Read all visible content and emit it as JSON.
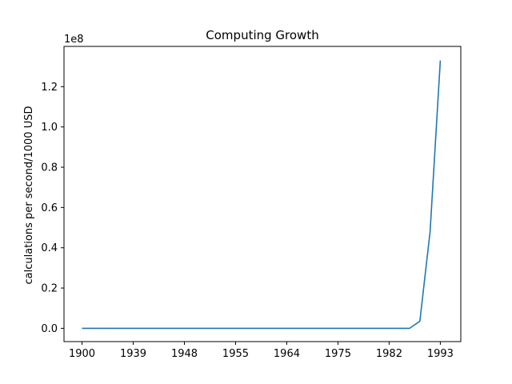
{
  "chart_data": {
    "type": "line",
    "title": "Computing Growth",
    "xlabel": "",
    "ylabel": "calculations per second/1000 USD",
    "y_offset_label": "1e8",
    "x_tick_labels": [
      "1900",
      "1939",
      "1948",
      "1955",
      "1964",
      "1975",
      "1982",
      "1993"
    ],
    "y_ticks": [
      0.0,
      0.2,
      0.4,
      0.6,
      0.8,
      1.0,
      1.2
    ],
    "y_tick_labels": [
      "0.0",
      "0.2",
      "0.4",
      "0.6",
      "0.8",
      "1.0",
      "1.2"
    ],
    "ylim": [
      -0.066,
      1.4
    ],
    "xlim_index": [
      -1.76,
      37.0
    ],
    "line_color": "#1f77b4",
    "grid": false,
    "series": [
      {
        "name": "",
        "x_index": [
          0,
          1,
          2,
          3,
          4,
          5,
          6,
          7,
          8,
          9,
          10,
          11,
          12,
          13,
          14,
          15,
          16,
          17,
          18,
          19,
          20,
          21,
          22,
          23,
          24,
          25,
          26,
          27,
          28,
          29,
          30,
          31,
          32,
          33,
          34,
          35
        ],
        "values": [
          0.0,
          0.0,
          0.0,
          0.0,
          0.0,
          0.0,
          0.0,
          0.0,
          0.0,
          0.0,
          0.0,
          0.0,
          0.0,
          0.0,
          0.0,
          0.0,
          0.0,
          0.0,
          0.0,
          0.0,
          0.0,
          0.0,
          0.0,
          0.0,
          0.0,
          0.0,
          0.0,
          0.0,
          0.0,
          0.0,
          0.0,
          0.0,
          0.0,
          0.035,
          0.48,
          1.33
        ]
      }
    ],
    "x_tick_positions_index": [
      0,
      5,
      10,
      15,
      20,
      25,
      30,
      35
    ]
  }
}
